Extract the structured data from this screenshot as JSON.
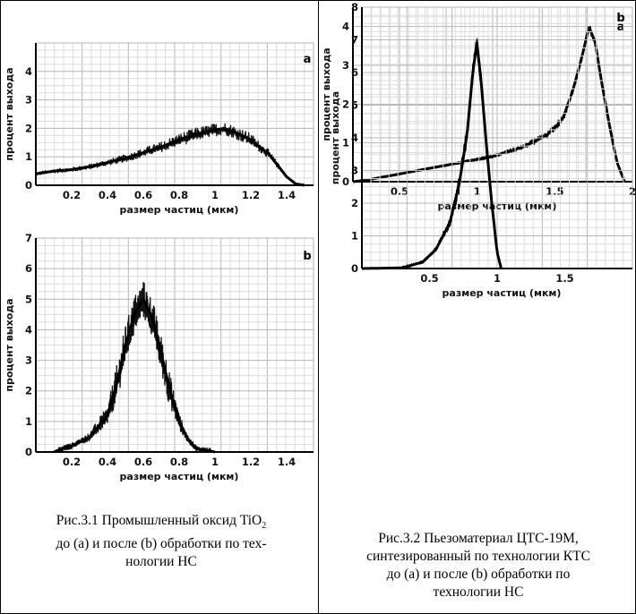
{
  "figures": [
    {
      "caption_line1": "Рис.3.1 Промышленный оксид TiO",
      "caption_sub": "2",
      "caption_line2": "до (a) и после (b) обработки по тех-",
      "caption_line3": "нологии НС"
    },
    {
      "caption_line1": "Рис.3.2 Пьезоматериал ЦТС-19М,",
      "caption_line2": "синтезированный по технологии КТС",
      "caption_line3": "до (a) и после (b) обработки по",
      "caption_line4": "технологии НС"
    }
  ],
  "chart_data": [
    {
      "id": "fig1a",
      "type": "area",
      "panel_letter": "a",
      "xlabel": "размер частиц (мкм)",
      "ylabel": "процент выхода",
      "xlim": [
        0,
        1.55
      ],
      "ylim": [
        0,
        5
      ],
      "xticks": [
        "0.2",
        "0.4",
        "0.6",
        "0.8",
        "1",
        "1.2",
        "1.4"
      ],
      "yticks": [
        "0",
        "1",
        "2",
        "3",
        "4"
      ],
      "x": [
        0.0,
        0.1,
        0.2,
        0.3,
        0.4,
        0.5,
        0.6,
        0.7,
        0.8,
        0.9,
        1.0,
        1.05,
        1.1,
        1.2,
        1.3,
        1.35,
        1.4,
        1.45,
        1.5
      ],
      "y": [
        0.4,
        0.5,
        0.55,
        0.65,
        0.8,
        0.95,
        1.15,
        1.35,
        1.6,
        1.8,
        1.95,
        2.0,
        1.9,
        1.6,
        1.1,
        0.7,
        0.3,
        0.05,
        0.0
      ]
    },
    {
      "id": "fig1b",
      "type": "area",
      "panel_letter": "b",
      "xlabel": "размер частиц (мкм)",
      "ylabel": "процент выхода",
      "xlim": [
        0,
        1.55
      ],
      "ylim": [
        0,
        7
      ],
      "xticks": [
        "0.2",
        "0.4",
        "0.6",
        "0.8",
        "1",
        "1.2",
        "1.4"
      ],
      "yticks": [
        "0",
        "1",
        "2",
        "3",
        "4",
        "5",
        "6",
        "7"
      ],
      "x": [
        0.1,
        0.2,
        0.3,
        0.4,
        0.45,
        0.5,
        0.55,
        0.6,
        0.65,
        0.7,
        0.75,
        0.8,
        0.85,
        0.9,
        1.0
      ],
      "y": [
        0.0,
        0.2,
        0.5,
        1.2,
        2.2,
        3.5,
        4.5,
        5.0,
        4.4,
        3.2,
        2.0,
        1.0,
        0.4,
        0.1,
        0.0
      ]
    },
    {
      "id": "fig2a",
      "type": "area",
      "panel_letter": "a",
      "xlabel": "размер частиц (мкм)",
      "ylabel": "процент выхода",
      "xlim": [
        0.2,
        2.0
      ],
      "ylim": [
        0,
        4.5
      ],
      "xticks": [
        "0.5",
        "1",
        "1.5",
        "2"
      ],
      "yticks": [
        "0",
        "1",
        "2",
        "3",
        "4"
      ],
      "x": [
        0.2,
        0.3,
        0.5,
        0.7,
        0.9,
        1.1,
        1.3,
        1.45,
        1.55,
        1.62,
        1.68,
        1.72,
        1.76,
        1.8,
        1.85,
        1.9,
        1.95
      ],
      "y": [
        0.0,
        0.05,
        0.2,
        0.35,
        0.5,
        0.65,
        0.9,
        1.2,
        1.6,
        2.4,
        3.3,
        4.0,
        3.6,
        2.6,
        1.5,
        0.5,
        0.0
      ]
    },
    {
      "id": "fig2b",
      "type": "area",
      "panel_letter": "b",
      "xlabel": "размер частиц (мкм)",
      "ylabel": "процент выхода",
      "xlim": [
        0.0,
        2.0
      ],
      "ylim": [
        0,
        8
      ],
      "xticks": [
        "0.5",
        "1",
        "1.5"
      ],
      "yticks": [
        "0",
        "1",
        "2",
        "3",
        "4",
        "5",
        "6",
        "7",
        "8"
      ],
      "x": [
        0.0,
        0.3,
        0.45,
        0.55,
        0.65,
        0.72,
        0.78,
        0.82,
        0.85,
        0.88,
        0.92,
        0.96,
        1.0,
        1.03
      ],
      "y": [
        0.0,
        0.02,
        0.2,
        0.6,
        1.4,
        2.6,
        4.2,
        6.0,
        6.9,
        5.8,
        3.8,
        2.0,
        0.5,
        0.0
      ]
    }
  ]
}
